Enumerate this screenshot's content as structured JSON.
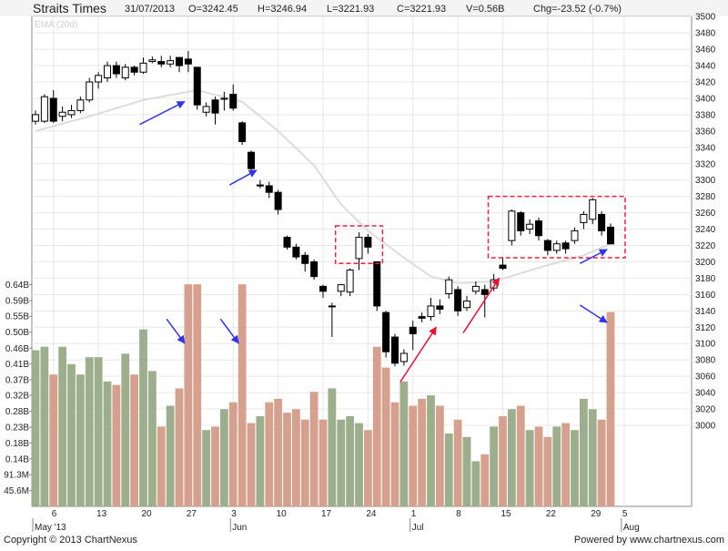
{
  "header": {
    "title": "Straits Times",
    "date": "31/07/2013",
    "open": "O=3242.45",
    "high": "H=3246.94",
    "low": "L=3221.93",
    "close": "C=3221.93",
    "volume": "V=0.56B",
    "change": "Chg=-23.52 (-0.7%)"
  },
  "ema_label": "EMA (20d)",
  "footer": {
    "copyright": "Copyright © 2013 ChartNexus",
    "powered": "Powered by www.chartnexus.com"
  },
  "colors": {
    "up_body": "#ffffff",
    "down_body": "#000000",
    "vol_up": "#9cae8c",
    "vol_down": "#d6a08f",
    "ema": "#dcdcdc",
    "grid": "#e8e8e8",
    "blue_arrow": "#3333ee",
    "red_arrow": "#ee1133",
    "dashed_box": "#ee2244"
  },
  "chart_data": {
    "type": "candlestick",
    "instrument": "Straits Times",
    "price_axis": {
      "ylim": [
        2990,
        3500
      ],
      "ticks": [
        3000,
        3020,
        3040,
        3060,
        3080,
        3100,
        3120,
        3140,
        3160,
        3180,
        3200,
        3220,
        3240,
        3260,
        3280,
        3300,
        3320,
        3340,
        3360,
        3380,
        3400,
        3420,
        3440,
        3460,
        3480,
        3500
      ]
    },
    "volume_axis": {
      "ticks": [
        "45.6M",
        "91.3M",
        "0.14B",
        "0.18B",
        "0.23B",
        "0.28B",
        "0.32B",
        "0.37B",
        "0.41B",
        "0.46B",
        "0.50B",
        "0.55B",
        "0.59B",
        "0.64B"
      ]
    },
    "x_tick_labels": [
      "6",
      "13",
      "20",
      "27",
      "3",
      "10",
      "17",
      "24",
      "1",
      "8",
      "15",
      "22",
      "29",
      "5"
    ],
    "month_labels": [
      "May '13",
      "Jun",
      "Jul",
      "Aug"
    ],
    "candles": [
      {
        "date": "2013-05-02",
        "open": 3372,
        "high": 3385,
        "low": 3368,
        "close": 3380,
        "volume": 0.45
      },
      {
        "date": "2013-05-03",
        "open": 3372,
        "high": 3405,
        "low": 3370,
        "close": 3402,
        "volume": 0.46
      },
      {
        "date": "2013-05-06",
        "open": 3400,
        "high": 3410,
        "low": 3370,
        "close": 3372,
        "volume": 0.38
      },
      {
        "date": "2013-05-07",
        "open": 3378,
        "high": 3390,
        "low": 3372,
        "close": 3383,
        "volume": 0.46
      },
      {
        "date": "2013-05-08",
        "open": 3380,
        "high": 3392,
        "low": 3376,
        "close": 3385,
        "volume": 0.41
      },
      {
        "date": "2013-05-09",
        "open": 3385,
        "high": 3402,
        "low": 3382,
        "close": 3398,
        "volume": 0.38
      },
      {
        "date": "2013-05-10",
        "open": 3398,
        "high": 3425,
        "low": 3395,
        "close": 3420,
        "volume": 0.43
      },
      {
        "date": "2013-05-13",
        "open": 3420,
        "high": 3432,
        "low": 3412,
        "close": 3428,
        "volume": 0.43
      },
      {
        "date": "2013-05-14",
        "open": 3425,
        "high": 3445,
        "low": 3420,
        "close": 3440,
        "volume": 0.36
      },
      {
        "date": "2013-05-15",
        "open": 3440,
        "high": 3445,
        "low": 3425,
        "close": 3430,
        "volume": 0.35
      },
      {
        "date": "2013-05-16",
        "open": 3425,
        "high": 3442,
        "low": 3422,
        "close": 3438,
        "volume": 0.44
      },
      {
        "date": "2013-05-17",
        "open": 3438,
        "high": 3440,
        "low": 3428,
        "close": 3432,
        "volume": 0.38
      },
      {
        "date": "2013-05-20",
        "open": 3432,
        "high": 3450,
        "low": 3430,
        "close": 3443,
        "volume": 0.51
      },
      {
        "date": "2013-05-21",
        "open": 3445,
        "high": 3451,
        "low": 3443,
        "close": 3447,
        "volume": 0.39
      },
      {
        "date": "2013-05-22",
        "open": 3445,
        "high": 3452,
        "low": 3438,
        "close": 3442,
        "volume": 0.23
      },
      {
        "date": "2013-05-23",
        "open": 3442,
        "high": 3452,
        "low": 3438,
        "close": 3446,
        "volume": 0.29
      },
      {
        "date": "2013-05-24",
        "open": 3450,
        "high": 3450,
        "low": 3432,
        "close": 3440,
        "volume": 0.34
      },
      {
        "date": "2013-05-27",
        "open": 3448,
        "high": 3458,
        "low": 3432,
        "close": 3442,
        "volume": 0.64
      },
      {
        "date": "2013-05-28",
        "open": 3438,
        "high": 3438,
        "low": 3386,
        "close": 3392,
        "volume": 0.64
      },
      {
        "date": "2013-05-29",
        "open": 3383,
        "high": 3395,
        "low": 3378,
        "close": 3390,
        "volume": 0.22
      },
      {
        "date": "2013-05-30",
        "open": 3398,
        "high": 3402,
        "low": 3368,
        "close": 3382,
        "volume": 0.23
      },
      {
        "date": "2013-05-31",
        "open": 3400,
        "high": 3408,
        "low": 3385,
        "close": 3400,
        "volume": 0.28
      },
      {
        "date": "2013-06-03",
        "open": 3405,
        "high": 3417,
        "low": 3385,
        "close": 3388,
        "volume": 0.3
      },
      {
        "date": "2013-06-04",
        "open": 3370,
        "high": 3372,
        "low": 3343,
        "close": 3347,
        "volume": 0.64
      },
      {
        "date": "2013-06-05",
        "open": 3334,
        "high": 3336,
        "low": 3308,
        "close": 3314,
        "volume": 0.24
      },
      {
        "date": "2013-06-06",
        "open": 3294,
        "high": 3300,
        "low": 3290,
        "close": 3294,
        "volume": 0.26
      },
      {
        "date": "2013-06-07",
        "open": 3293,
        "high": 3298,
        "low": 3278,
        "close": 3285,
        "volume": 0.3
      },
      {
        "date": "2013-06-10",
        "open": 3285,
        "high": 3288,
        "low": 3258,
        "close": 3264,
        "volume": 0.31
      },
      {
        "date": "2013-06-11",
        "open": 3230,
        "high": 3232,
        "low": 3215,
        "close": 3218,
        "volume": 0.27
      },
      {
        "date": "2013-06-12",
        "open": 3218,
        "high": 3222,
        "low": 3203,
        "close": 3206,
        "volume": 0.28
      },
      {
        "date": "2013-06-13",
        "open": 3208,
        "high": 3212,
        "low": 3188,
        "close": 3198,
        "volume": 0.25
      },
      {
        "date": "2013-06-14",
        "open": 3200,
        "high": 3203,
        "low": 3178,
        "close": 3182,
        "volume": 0.33
      },
      {
        "date": "2013-06-17",
        "open": 3170,
        "high": 3172,
        "low": 3156,
        "close": 3164,
        "volume": 0.25
      },
      {
        "date": "2013-06-18",
        "open": 3146,
        "high": 3150,
        "low": 3108,
        "close": 3146,
        "volume": 0.34
      },
      {
        "date": "2013-06-19",
        "open": 3164,
        "high": 3173,
        "low": 3158,
        "close": 3172,
        "volume": 0.25
      },
      {
        "date": "2013-06-20",
        "open": 3163,
        "high": 3192,
        "low": 3158,
        "close": 3190,
        "volume": 0.26
      },
      {
        "date": "2013-06-21",
        "open": 3204,
        "high": 3236,
        "low": 3190,
        "close": 3230,
        "volume": 0.24
      },
      {
        "date": "2013-06-24",
        "open": 3230,
        "high": 3234,
        "low": 3210,
        "close": 3218,
        "volume": 0.22
      },
      {
        "date": "2013-06-25",
        "open": 3200,
        "high": 3200,
        "low": 3140,
        "close": 3146,
        "volume": 0.46
      },
      {
        "date": "2013-06-26",
        "open": 3138,
        "high": 3140,
        "low": 3083,
        "close": 3090,
        "volume": 0.4
      },
      {
        "date": "2013-06-27",
        "open": 3108,
        "high": 3112,
        "low": 3072,
        "close": 3076,
        "volume": 0.3
      },
      {
        "date": "2013-06-28",
        "open": 3078,
        "high": 3093,
        "low": 3073,
        "close": 3088,
        "volume": 0.36
      },
      {
        "date": "2013-07-01",
        "open": 3120,
        "high": 3128,
        "low": 3092,
        "close": 3112,
        "volume": 0.29
      },
      {
        "date": "2013-07-02",
        "open": 3133,
        "high": 3138,
        "low": 3126,
        "close": 3131,
        "volume": 0.31
      },
      {
        "date": "2013-07-03",
        "open": 3133,
        "high": 3156,
        "low": 3128,
        "close": 3146,
        "volume": 0.32
      },
      {
        "date": "2013-07-04",
        "open": 3146,
        "high": 3154,
        "low": 3136,
        "close": 3142,
        "volume": 0.29
      },
      {
        "date": "2013-07-05",
        "open": 3161,
        "high": 3182,
        "low": 3155,
        "close": 3178,
        "volume": 0.21
      },
      {
        "date": "2013-07-08",
        "open": 3166,
        "high": 3170,
        "low": 3134,
        "close": 3140,
        "volume": 0.25
      },
      {
        "date": "2013-07-09",
        "open": 3144,
        "high": 3158,
        "low": 3140,
        "close": 3152,
        "volume": 0.2
      },
      {
        "date": "2013-07-10",
        "open": 3164,
        "high": 3176,
        "low": 3160,
        "close": 3170,
        "volume": 0.13
      },
      {
        "date": "2013-07-11",
        "open": 3166,
        "high": 3172,
        "low": 3132,
        "close": 3160,
        "volume": 0.15
      },
      {
        "date": "2013-07-12",
        "open": 3168,
        "high": 3185,
        "low": 3164,
        "close": 3178,
        "volume": 0.23
      },
      {
        "date": "2013-07-15",
        "open": 3196,
        "high": 3206,
        "low": 3190,
        "close": 3192,
        "volume": 0.26
      },
      {
        "date": "2013-07-16",
        "open": 3226,
        "high": 3264,
        "low": 3220,
        "close": 3262,
        "volume": 0.28
      },
      {
        "date": "2013-07-17",
        "open": 3260,
        "high": 3262,
        "low": 3232,
        "close": 3238,
        "volume": 0.29
      },
      {
        "date": "2013-07-18",
        "open": 3240,
        "high": 3252,
        "low": 3234,
        "close": 3246,
        "volume": 0.22
      },
      {
        "date": "2013-07-19",
        "open": 3250,
        "high": 3254,
        "low": 3226,
        "close": 3232,
        "volume": 0.23
      },
      {
        "date": "2013-07-22",
        "open": 3226,
        "high": 3228,
        "low": 3208,
        "close": 3214,
        "volume": 0.2
      },
      {
        "date": "2013-07-23",
        "open": 3214,
        "high": 3226,
        "low": 3210,
        "close": 3222,
        "volume": 0.23
      },
      {
        "date": "2013-07-24",
        "open": 3223,
        "high": 3226,
        "low": 3210,
        "close": 3216,
        "volume": 0.24
      },
      {
        "date": "2013-07-25",
        "open": 3226,
        "high": 3242,
        "low": 3222,
        "close": 3238,
        "volume": 0.22
      },
      {
        "date": "2013-07-26",
        "open": 3248,
        "high": 3262,
        "low": 3240,
        "close": 3258,
        "volume": 0.31
      },
      {
        "date": "2013-07-29",
        "open": 3252,
        "high": 3278,
        "low": 3246,
        "close": 3276,
        "volume": 0.28
      },
      {
        "date": "2013-07-30",
        "open": 3258,
        "high": 3262,
        "low": 3232,
        "close": 3238,
        "volume": 0.25
      },
      {
        "date": "2013-07-31",
        "open": 3242.45,
        "high": 3246.94,
        "low": 3221.93,
        "close": 3221.93,
        "volume": 0.56
      }
    ],
    "ema": [
      {
        "date": "2013-05-02",
        "value": 3360
      },
      {
        "date": "2013-05-10",
        "value": 3378
      },
      {
        "date": "2013-05-20",
        "value": 3398
      },
      {
        "date": "2013-05-28",
        "value": 3410
      },
      {
        "date": "2013-06-04",
        "value": 3396
      },
      {
        "date": "2013-06-10",
        "value": 3360
      },
      {
        "date": "2013-06-14",
        "value": 3318
      },
      {
        "date": "2013-06-19",
        "value": 3270
      },
      {
        "date": "2013-06-24",
        "value": 3238
      },
      {
        "date": "2013-06-28",
        "value": 3205
      },
      {
        "date": "2013-07-03",
        "value": 3182
      },
      {
        "date": "2013-07-08",
        "value": 3174
      },
      {
        "date": "2013-07-12",
        "value": 3176
      },
      {
        "date": "2013-07-17",
        "value": 3186
      },
      {
        "date": "2013-07-22",
        "value": 3196
      },
      {
        "date": "2013-07-26",
        "value": 3208
      },
      {
        "date": "2013-07-31",
        "value": 3222
      }
    ],
    "highlight_boxes": [
      {
        "from": "2013-06-20",
        "to": "2013-06-24",
        "low": 3198,
        "high": 3244
      },
      {
        "from": "2013-07-15",
        "to": "2013-07-31",
        "low": 3205,
        "high": 3280
      }
    ],
    "annotation_arrows": [
      {
        "color": "blue",
        "x1": "2013-05-20",
        "y1": 3368,
        "x2": "2013-05-27",
        "y2": 3396
      },
      {
        "color": "blue",
        "x1": "2013-06-03",
        "y1": 3294,
        "x2": "2013-06-06",
        "y2": 3312
      },
      {
        "color": "blue",
        "x1": "2013-05-23",
        "vol1": 0.54,
        "x2": "2013-05-27",
        "vol2": 0.47
      },
      {
        "color": "blue",
        "x1": "2013-05-31",
        "vol1": 0.54,
        "x2": "2013-06-04",
        "vol2": 0.47
      },
      {
        "color": "red",
        "x1": "2013-06-28",
        "y1": 3053,
        "x2": "2013-07-04",
        "y2": 3120
      },
      {
        "color": "red",
        "x1": "2013-07-09",
        "y1": 3113,
        "x2": "2013-07-15",
        "y2": 3180
      },
      {
        "color": "blue",
        "x1": "2013-07-26",
        "y1": 3198,
        "x2": "2013-07-31",
        "y2": 3215
      },
      {
        "color": "blue",
        "x1": "2013-07-26",
        "vol1": 0.58,
        "x2": "2013-07-31",
        "vol2": 0.53
      }
    ]
  }
}
